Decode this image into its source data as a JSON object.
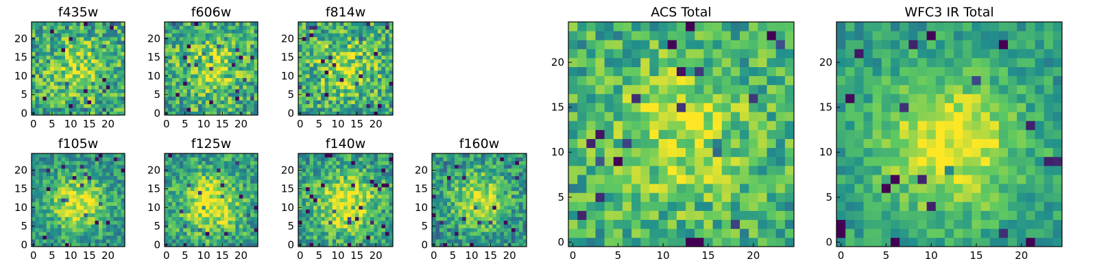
{
  "figure": "Cutout images of a galaxy in each filter and the stacked totals",
  "colormap": {
    "name": "viridis",
    "stops": [
      "#440154",
      "#3b528b",
      "#21918c",
      "#5ec962",
      "#fde725"
    ]
  },
  "chart_data": [
    {
      "type": "heatmap",
      "title": "f435w",
      "xlim": [
        0,
        24
      ],
      "ylim": [
        0,
        24
      ],
      "xticks": [
        "0",
        "5",
        "10",
        "15",
        "20"
      ],
      "yticks": [
        "0",
        "5",
        "10",
        "15",
        "20"
      ],
      "grid_size": [
        25,
        25
      ],
      "center": [
        12,
        12
      ],
      "peak": 0.5,
      "base": 0.6,
      "noise": 0.55,
      "seed": 11
    },
    {
      "type": "heatmap",
      "title": "f606w",
      "xlim": [
        0,
        24
      ],
      "ylim": [
        0,
        24
      ],
      "xticks": [
        "0",
        "5",
        "10",
        "15",
        "20"
      ],
      "yticks": [
        "0",
        "5",
        "10",
        "15",
        "20"
      ],
      "grid_size": [
        25,
        25
      ],
      "center": [
        12,
        12
      ],
      "peak": 0.6,
      "base": 0.6,
      "noise": 0.55,
      "seed": 23
    },
    {
      "type": "heatmap",
      "title": "f814w",
      "xlim": [
        0,
        24
      ],
      "ylim": [
        0,
        24
      ],
      "xticks": [
        "0",
        "5",
        "10",
        "15",
        "20"
      ],
      "yticks": [
        "0",
        "5",
        "10",
        "15",
        "20"
      ],
      "grid_size": [
        25,
        25
      ],
      "center": [
        12,
        12
      ],
      "peak": 0.6,
      "base": 0.6,
      "noise": 0.55,
      "seed": 37
    },
    {
      "type": "heatmap",
      "title": "f105w",
      "xlim": [
        0,
        24
      ],
      "ylim": [
        0,
        24
      ],
      "xticks": [
        "0",
        "5",
        "10",
        "15",
        "20"
      ],
      "yticks": [
        "0",
        "5",
        "10",
        "15",
        "20"
      ],
      "grid_size": [
        25,
        25
      ],
      "center": [
        12,
        11
      ],
      "peak": 1.0,
      "base": 0.5,
      "noise": 0.4,
      "seed": 41
    },
    {
      "type": "heatmap",
      "title": "f125w",
      "xlim": [
        0,
        24
      ],
      "ylim": [
        0,
        24
      ],
      "xticks": [
        "0",
        "5",
        "10",
        "15",
        "20"
      ],
      "yticks": [
        "0",
        "5",
        "10",
        "15",
        "20"
      ],
      "grid_size": [
        25,
        25
      ],
      "center": [
        12,
        11
      ],
      "peak": 1.0,
      "base": 0.55,
      "noise": 0.45,
      "seed": 53
    },
    {
      "type": "heatmap",
      "title": "f140w",
      "xlim": [
        0,
        24
      ],
      "ylim": [
        0,
        24
      ],
      "xticks": [
        "0",
        "5",
        "10",
        "15",
        "20"
      ],
      "yticks": [
        "0",
        "5",
        "10",
        "15",
        "20"
      ],
      "grid_size": [
        25,
        25
      ],
      "center": [
        12,
        11
      ],
      "peak": 1.0,
      "base": 0.55,
      "noise": 0.45,
      "seed": 67
    },
    {
      "type": "heatmap",
      "title": "f160w",
      "xlim": [
        0,
        24
      ],
      "ylim": [
        0,
        24
      ],
      "xticks": [
        "0",
        "5",
        "10",
        "15",
        "20"
      ],
      "yticks": [
        "0",
        "5",
        "10",
        "15",
        "20"
      ],
      "grid_size": [
        25,
        25
      ],
      "center": [
        12,
        12
      ],
      "peak": 0.9,
      "base": 0.5,
      "noise": 0.45,
      "seed": 79
    },
    {
      "type": "heatmap",
      "title": "ACS Total",
      "xlim": [
        0,
        24
      ],
      "ylim": [
        0,
        24
      ],
      "xticks": [
        "0",
        "5",
        "10",
        "15",
        "20"
      ],
      "yticks": [
        "0",
        "5",
        "10",
        "15",
        "20"
      ],
      "grid_size": [
        25,
        25
      ],
      "center": [
        12,
        12
      ],
      "peak": 0.6,
      "base": 0.62,
      "noise": 0.45,
      "seed": 97
    },
    {
      "type": "heatmap",
      "title": "WFC3 IR Total",
      "xlim": [
        0,
        24
      ],
      "ylim": [
        0,
        24
      ],
      "xticks": [
        "0",
        "5",
        "10",
        "15",
        "20"
      ],
      "yticks": [
        "0",
        "5",
        "10",
        "15",
        "20"
      ],
      "grid_size": [
        25,
        25
      ],
      "center": [
        12,
        11
      ],
      "peak": 1.0,
      "base": 0.55,
      "noise": 0.3,
      "seed": 101
    }
  ]
}
